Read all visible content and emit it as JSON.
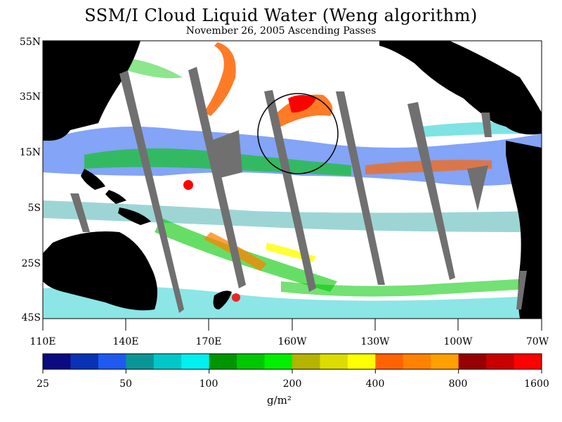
{
  "title": "SSM/I Cloud Liquid Water (Weng algorithm)",
  "subtitle": "November 26, 2005  Ascending Passes",
  "lat_labels": [
    "55N",
    "35N",
    "15N",
    "5S",
    "25S",
    "45S"
  ],
  "lon_labels": [
    "110E",
    "140E",
    "170E",
    "160W",
    "130W",
    "100W",
    "70W"
  ],
  "colorbar": {
    "labels": [
      "25",
      "50",
      "100",
      "200",
      "400",
      "800",
      "1600"
    ],
    "colors": [
      "#0a0a82",
      "#0a32b4",
      "#1e5af0",
      "#0a9696",
      "#00c8c8",
      "#00f0f0",
      "#009600",
      "#00c800",
      "#00f000",
      "#b4b400",
      "#dcdc00",
      "#ffff00",
      "#ff6400",
      "#ff8200",
      "#ffa000",
      "#960000",
      "#c80000",
      "#ff0000"
    ],
    "unit": "g/m²"
  },
  "map_colors": {
    "ocean": "#ffffff",
    "land": "#000000",
    "missing": "#707070"
  }
}
